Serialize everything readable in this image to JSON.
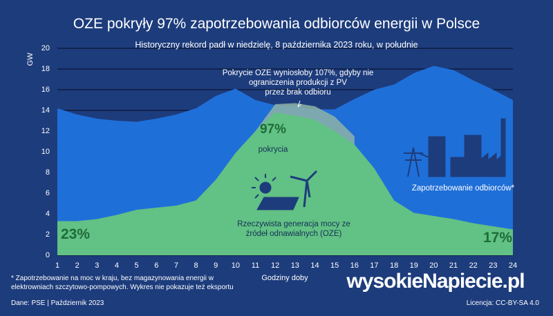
{
  "chart_data": {
    "type": "area",
    "title": "OZE pokryły 97% zapotrzebowania odbiorców energii w Polsce",
    "subtitle": "Historyczny rekord padł w niedzielę, 8 października 2023 roku, w południe",
    "y_label": "GW",
    "x_label": "Godziny doby",
    "x": [
      1,
      2,
      3,
      4,
      5,
      6,
      7,
      8,
      9,
      10,
      11,
      12,
      13,
      14,
      15,
      16,
      17,
      18,
      19,
      20,
      21,
      22,
      23,
      24
    ],
    "xlim": [
      1,
      24
    ],
    "xticks": [
      1,
      2,
      3,
      4,
      5,
      6,
      7,
      8,
      9,
      10,
      11,
      12,
      13,
      14,
      15,
      16,
      17,
      18,
      19,
      20,
      21,
      22,
      23,
      24
    ],
    "ylim": [
      0,
      20
    ],
    "yticks": [
      0,
      2,
      4,
      6,
      8,
      10,
      12,
      14,
      16,
      18,
      20
    ],
    "grid": true,
    "series": [
      {
        "name": "Zapotrzebowanie odbiorców*",
        "color": "#1f6fd8",
        "values": [
          14.2,
          13.6,
          13.2,
          13.0,
          12.9,
          13.2,
          13.6,
          14.2,
          15.4,
          16.1,
          15.0,
          14.5,
          14.4,
          14.1,
          14.1,
          15.1,
          16.0,
          16.5,
          17.6,
          18.3,
          17.9,
          16.9,
          16.0,
          15.0
        ]
      },
      {
        "color": "#8fb3a8",
        "values": [
          null,
          null,
          null,
          null,
          null,
          null,
          null,
          null,
          null,
          null,
          12.0,
          14.6,
          14.7,
          14.4,
          13.4,
          11.5,
          null,
          null,
          null,
          null,
          null,
          null,
          null,
          null
        ]
      },
      {
        "name": "Rzeczywista generacja mocy ze źródeł odnawialnych (OZE)",
        "color": "#62c184",
        "values": [
          3.3,
          3.3,
          3.5,
          3.9,
          4.4,
          4.6,
          4.8,
          5.3,
          7.3,
          9.9,
          12.0,
          13.8,
          13.5,
          13.1,
          12.0,
          10.7,
          8.4,
          5.3,
          4.1,
          3.8,
          3.5,
          3.1,
          2.8,
          2.5
        ]
      }
    ],
    "annotations": {
      "curtailment": [
        "Pokrycie OZE wyniosłoby 107%, gdyby nie",
        "ograniczenia produkcji z PV",
        "przez brak odbioru"
      ],
      "coverage": "97%",
      "coverage_text": "pokrycia",
      "start_share": "23%",
      "end_share": "17%"
    },
    "footnote": [
      "* Zapotrzebowanie na moc w kraju, bez magazynowania energii w",
      "elektrowniach szczytowo-pompowych. Wykres nie pokazuje też eksportu"
    ],
    "source": "Dane: PSE  |  Październik 2023",
    "license": "Licencja: CC-BY-SA 4.0",
    "logo": "wysokieNapiecie.pl"
  }
}
